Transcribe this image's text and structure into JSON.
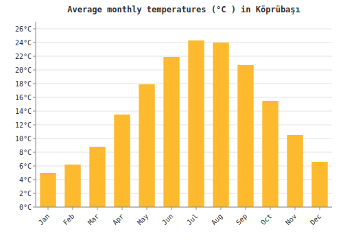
{
  "chart_data": {
    "type": "bar",
    "title": "Average monthly temperatures (°C ) in Köprübaşı",
    "categories": [
      "Jan",
      "Feb",
      "Mar",
      "Apr",
      "May",
      "Jun",
      "Jul",
      "Aug",
      "Sep",
      "Oct",
      "Nov",
      "Dec"
    ],
    "values": [
      5.0,
      6.2,
      8.8,
      13.5,
      17.9,
      21.9,
      24.3,
      24.0,
      20.7,
      15.5,
      10.5,
      6.6
    ],
    "color": "#FDBA2E",
    "ylim": [
      0,
      27
    ],
    "yticks": [
      {
        "value": 0,
        "label": "0°C"
      },
      {
        "value": 2,
        "label": "2°C"
      },
      {
        "value": 4,
        "label": "4°C"
      },
      {
        "value": 6,
        "label": "6°C"
      },
      {
        "value": 8,
        "label": "8°C"
      },
      {
        "value": 10,
        "label": "10°C"
      },
      {
        "value": 12,
        "label": "12°C"
      },
      {
        "value": 14,
        "label": "14°C"
      },
      {
        "value": 16,
        "label": "16°C"
      },
      {
        "value": 18,
        "label": "18°C"
      },
      {
        "value": 20,
        "label": "20°C"
      },
      {
        "value": 22,
        "label": "22°C"
      },
      {
        "value": 24,
        "label": "24°C"
      },
      {
        "value": 26,
        "label": "26°C"
      }
    ],
    "grid": true
  }
}
